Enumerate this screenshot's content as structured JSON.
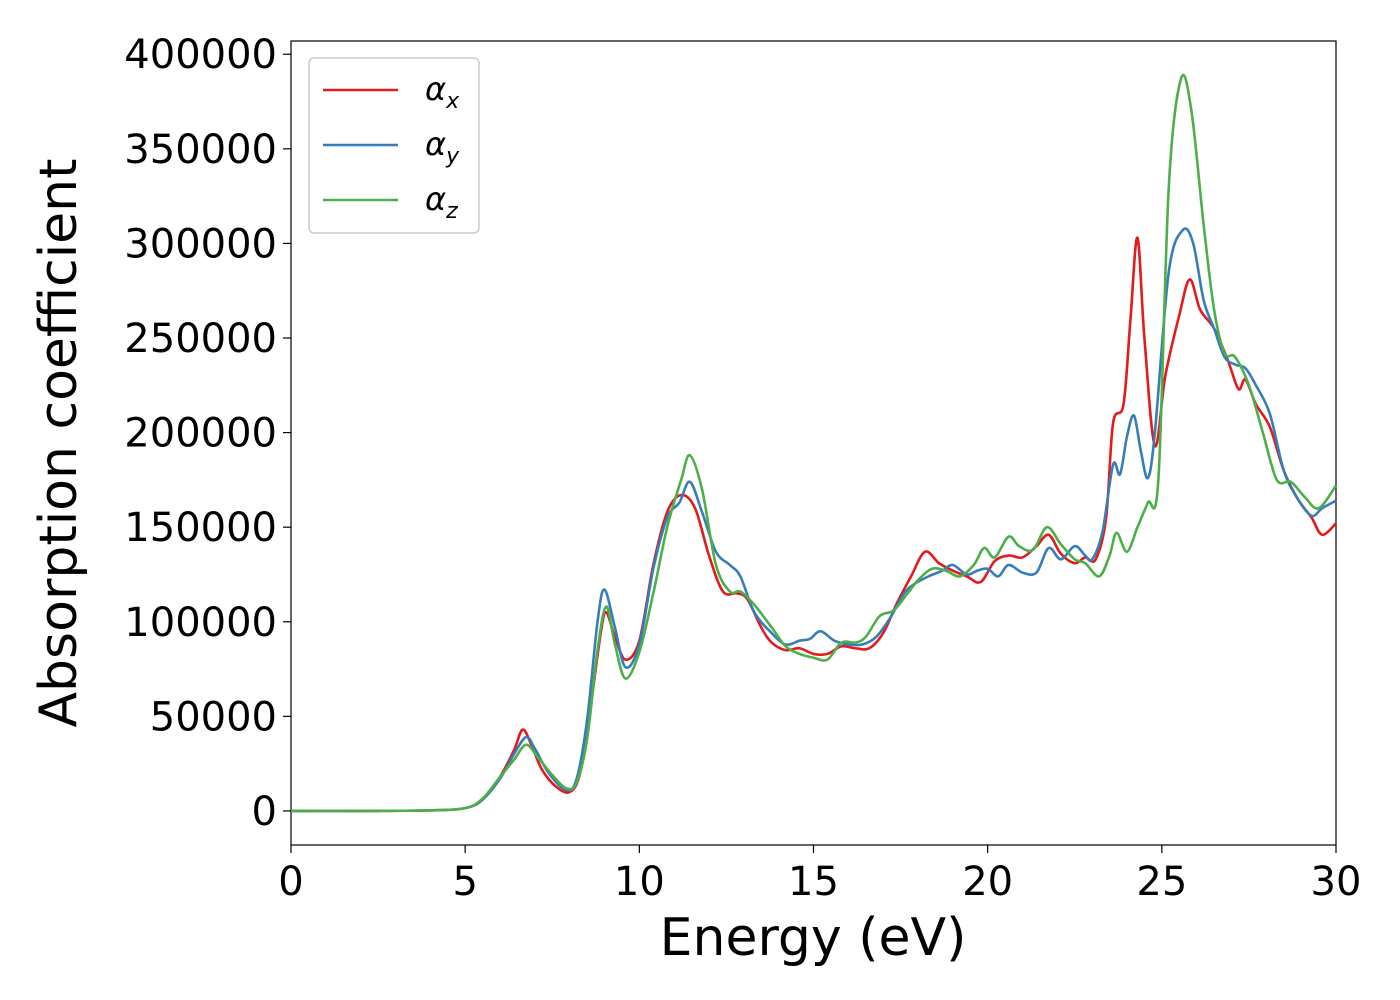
{
  "chart_data": {
    "type": "line",
    "title": "",
    "xlabel": "Energy (eV)",
    "ylabel": "Absorption coefficient",
    "xlim": [
      0,
      30
    ],
    "ylim": [
      -18000,
      407000
    ],
    "x_ticks": [
      0,
      5,
      10,
      15,
      20,
      25,
      30
    ],
    "x_tick_labels": [
      "0",
      "5",
      "10",
      "15",
      "20",
      "25",
      "30"
    ],
    "y_ticks": [
      0,
      50000,
      100000,
      150000,
      200000,
      250000,
      300000,
      350000,
      400000
    ],
    "y_tick_labels": [
      "0",
      "50000",
      "100000",
      "150000",
      "200000",
      "250000",
      "300000",
      "350000",
      "400000"
    ],
    "grid": false,
    "legend_position": "top-left",
    "series": [
      {
        "name": "α",
        "subscript": "x",
        "color": "#e41a1c",
        "points": [
          [
            0,
            0
          ],
          [
            2,
            0
          ],
          [
            4,
            300
          ],
          [
            5,
            1500
          ],
          [
            5.5,
            6000
          ],
          [
            6,
            18000
          ],
          [
            6.4,
            32000
          ],
          [
            6.65,
            43000
          ],
          [
            6.9,
            35000
          ],
          [
            7.2,
            22000
          ],
          [
            7.6,
            13000
          ],
          [
            8,
            10000
          ],
          [
            8.3,
            20000
          ],
          [
            8.6,
            55000
          ],
          [
            8.9,
            95000
          ],
          [
            9.05,
            105000
          ],
          [
            9.3,
            92000
          ],
          [
            9.6,
            80000
          ],
          [
            10,
            90000
          ],
          [
            10.4,
            130000
          ],
          [
            10.8,
            158000
          ],
          [
            11.2,
            167000
          ],
          [
            11.6,
            160000
          ],
          [
            12,
            135000
          ],
          [
            12.4,
            116000
          ],
          [
            12.8,
            115000
          ],
          [
            13.1,
            112000
          ],
          [
            13.5,
            97000
          ],
          [
            13.8,
            89000
          ],
          [
            14.2,
            85000
          ],
          [
            14.6,
            86000
          ],
          [
            15,
            83000
          ],
          [
            15.4,
            83000
          ],
          [
            15.8,
            87000
          ],
          [
            16.2,
            86000
          ],
          [
            16.6,
            86000
          ],
          [
            17,
            94000
          ],
          [
            17.4,
            110000
          ],
          [
            17.8,
            124000
          ],
          [
            18.2,
            137000
          ],
          [
            18.6,
            131000
          ],
          [
            19,
            127000
          ],
          [
            19.4,
            124000
          ],
          [
            19.8,
            121000
          ],
          [
            20.2,
            132000
          ],
          [
            20.6,
            135000
          ],
          [
            21,
            134000
          ],
          [
            21.4,
            140000
          ],
          [
            21.75,
            146000
          ],
          [
            22.1,
            136000
          ],
          [
            22.5,
            131000
          ],
          [
            22.8,
            134000
          ],
          [
            23.1,
            133000
          ],
          [
            23.4,
            155000
          ],
          [
            23.6,
            205000
          ],
          [
            23.9,
            215000
          ],
          [
            24.1,
            260000
          ],
          [
            24.3,
            303000
          ],
          [
            24.5,
            250000
          ],
          [
            24.8,
            193000
          ],
          [
            25.1,
            230000
          ],
          [
            25.5,
            262000
          ],
          [
            25.8,
            281000
          ],
          [
            26.1,
            265000
          ],
          [
            26.5,
            255000
          ],
          [
            26.9,
            238000
          ],
          [
            27.2,
            223000
          ],
          [
            27.4,
            228000
          ],
          [
            27.7,
            215000
          ],
          [
            28.1,
            203000
          ],
          [
            28.5,
            180000
          ],
          [
            28.9,
            165000
          ],
          [
            29.3,
            155000
          ],
          [
            29.6,
            146000
          ],
          [
            30,
            152000
          ]
        ]
      },
      {
        "name": "α",
        "subscript": "y",
        "color": "#377eb8",
        "points": [
          [
            0,
            0
          ],
          [
            2,
            0
          ],
          [
            4,
            300
          ],
          [
            5,
            1500
          ],
          [
            5.5,
            6000
          ],
          [
            6,
            17000
          ],
          [
            6.4,
            30000
          ],
          [
            6.75,
            39000
          ],
          [
            7,
            33000
          ],
          [
            7.4,
            20000
          ],
          [
            7.9,
            11000
          ],
          [
            8.2,
            17000
          ],
          [
            8.5,
            48000
          ],
          [
            8.8,
            100000
          ],
          [
            9,
            117000
          ],
          [
            9.3,
            97000
          ],
          [
            9.6,
            76000
          ],
          [
            10,
            88000
          ],
          [
            10.4,
            128000
          ],
          [
            10.8,
            155000
          ],
          [
            11.15,
            163000
          ],
          [
            11.45,
            174000
          ],
          [
            11.8,
            158000
          ],
          [
            12.2,
            137000
          ],
          [
            12.6,
            130000
          ],
          [
            12.9,
            124000
          ],
          [
            13.3,
            105000
          ],
          [
            13.8,
            94000
          ],
          [
            14.2,
            88000
          ],
          [
            14.6,
            90000
          ],
          [
            14.9,
            91000
          ],
          [
            15.2,
            95000
          ],
          [
            15.6,
            90000
          ],
          [
            16,
            88000
          ],
          [
            16.4,
            88000
          ],
          [
            16.8,
            92000
          ],
          [
            17.2,
            102000
          ],
          [
            17.6,
            115000
          ],
          [
            17.9,
            120000
          ],
          [
            18.3,
            124000
          ],
          [
            18.7,
            127000
          ],
          [
            19,
            130000
          ],
          [
            19.4,
            125000
          ],
          [
            19.7,
            127000
          ],
          [
            20,
            128000
          ],
          [
            20.3,
            124000
          ],
          [
            20.6,
            130000
          ],
          [
            21,
            126000
          ],
          [
            21.4,
            126000
          ],
          [
            21.75,
            139000
          ],
          [
            22.1,
            133000
          ],
          [
            22.5,
            140000
          ],
          [
            22.8,
            135000
          ],
          [
            23,
            133000
          ],
          [
            23.3,
            148000
          ],
          [
            23.6,
            183000
          ],
          [
            23.8,
            178000
          ],
          [
            24,
            198000
          ],
          [
            24.2,
            209000
          ],
          [
            24.4,
            190000
          ],
          [
            24.6,
            176000
          ],
          [
            24.8,
            200000
          ],
          [
            25.2,
            285000
          ],
          [
            25.6,
            307000
          ],
          [
            25.9,
            300000
          ],
          [
            26.2,
            270000
          ],
          [
            26.5,
            255000
          ],
          [
            26.8,
            240000
          ],
          [
            27.1,
            236000
          ],
          [
            27.4,
            234000
          ],
          [
            27.7,
            225000
          ],
          [
            28.1,
            210000
          ],
          [
            28.5,
            180000
          ],
          [
            28.9,
            165000
          ],
          [
            29.3,
            156000
          ],
          [
            29.6,
            160000
          ],
          [
            30,
            164000
          ]
        ]
      },
      {
        "name": "α",
        "subscript": "z",
        "color": "#4daf4a",
        "points": [
          [
            0,
            0
          ],
          [
            2,
            0
          ],
          [
            4,
            300
          ],
          [
            5,
            1500
          ],
          [
            5.5,
            6500
          ],
          [
            6,
            18000
          ],
          [
            6.4,
            27000
          ],
          [
            6.75,
            35000
          ],
          [
            7.1,
            28000
          ],
          [
            7.5,
            19000
          ],
          [
            7.9,
            12000
          ],
          [
            8.2,
            15000
          ],
          [
            8.5,
            38000
          ],
          [
            8.8,
            85000
          ],
          [
            9.05,
            108000
          ],
          [
            9.3,
            88000
          ],
          [
            9.6,
            70000
          ],
          [
            10,
            84000
          ],
          [
            10.4,
            115000
          ],
          [
            10.8,
            150000
          ],
          [
            11.2,
            175000
          ],
          [
            11.45,
            188000
          ],
          [
            11.8,
            170000
          ],
          [
            12.2,
            130000
          ],
          [
            12.6,
            116000
          ],
          [
            12.9,
            116000
          ],
          [
            13.3,
            109000
          ],
          [
            13.8,
            97000
          ],
          [
            14.2,
            87000
          ],
          [
            14.6,
            83000
          ],
          [
            15,
            81000
          ],
          [
            15.4,
            80000
          ],
          [
            15.8,
            89000
          ],
          [
            16.2,
            89000
          ],
          [
            16.5,
            92000
          ],
          [
            16.9,
            103000
          ],
          [
            17.3,
            106000
          ],
          [
            17.7,
            115000
          ],
          [
            18,
            122000
          ],
          [
            18.4,
            128000
          ],
          [
            18.8,
            127000
          ],
          [
            19.2,
            124000
          ],
          [
            19.6,
            130000
          ],
          [
            19.9,
            139000
          ],
          [
            20.2,
            134000
          ],
          [
            20.6,
            145000
          ],
          [
            20.9,
            140000
          ],
          [
            21.3,
            138000
          ],
          [
            21.7,
            150000
          ],
          [
            22.1,
            141000
          ],
          [
            22.5,
            133000
          ],
          [
            22.8,
            131000
          ],
          [
            23.2,
            124000
          ],
          [
            23.5,
            135000
          ],
          [
            23.7,
            147000
          ],
          [
            24,
            137000
          ],
          [
            24.3,
            150000
          ],
          [
            24.6,
            163000
          ],
          [
            24.9,
            175000
          ],
          [
            25.2,
            330000
          ],
          [
            25.55,
            387000
          ],
          [
            25.85,
            370000
          ],
          [
            26.2,
            310000
          ],
          [
            26.5,
            265000
          ],
          [
            26.8,
            242000
          ],
          [
            27.1,
            240000
          ],
          [
            27.5,
            225000
          ],
          [
            27.9,
            200000
          ],
          [
            28.3,
            175000
          ],
          [
            28.7,
            174000
          ],
          [
            29.1,
            166000
          ],
          [
            29.5,
            160000
          ],
          [
            30,
            172000
          ]
        ]
      }
    ]
  }
}
